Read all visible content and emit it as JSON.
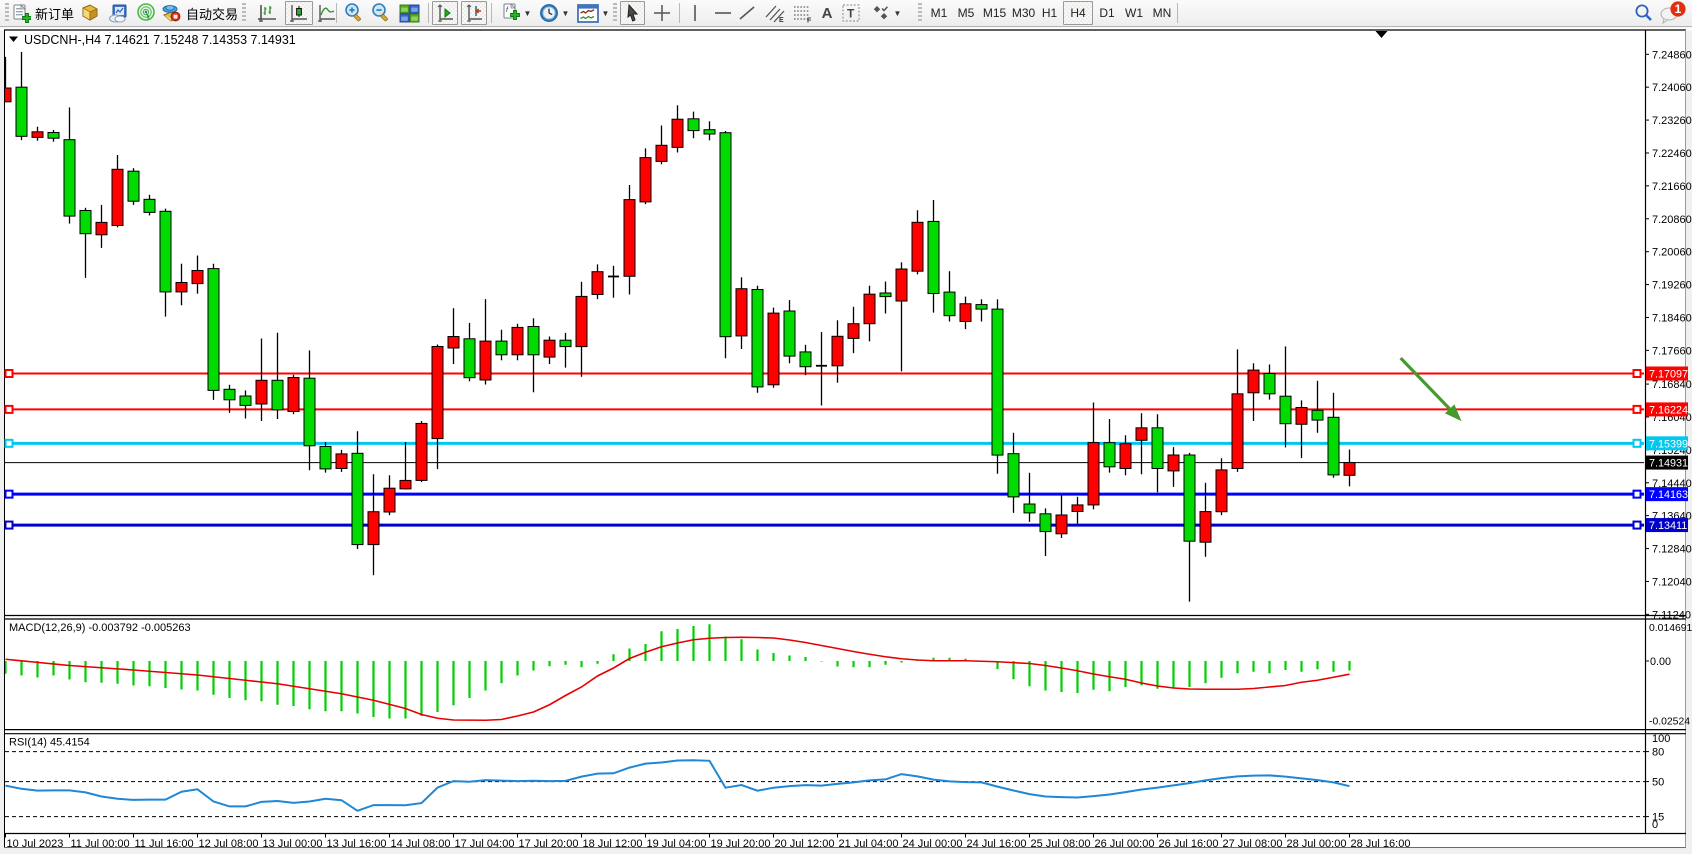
{
  "app": {
    "platform": "MetaTrader 4",
    "theme_accent": "#f3f3f3"
  },
  "toolbar": {
    "new_order_label": "新订单",
    "auto_trading_label": "自动交易",
    "icon_buttons": [
      "new-order",
      "market-watch",
      "data-window",
      "signals",
      "auto-trading"
    ],
    "chart_mode_buttons": [
      "bar-chart",
      "candlestick-chart",
      "line-chart"
    ],
    "selected_chart_mode": "candlestick-chart",
    "zoom_buttons": [
      "zoom-in",
      "zoom-out",
      "tile-windows"
    ],
    "toggle_buttons": [
      "auto-scroll",
      "chart-shift"
    ],
    "dropdown_buttons": [
      "indicators",
      "periods",
      "templates"
    ],
    "draw_tools": [
      "cursor",
      "crosshair",
      "vertical-line",
      "horizontal-line",
      "trendline",
      "equidistant-channel",
      "fibonacci",
      "text",
      "text-label",
      "arrows"
    ],
    "selected_tool": "cursor",
    "tool_letters": {
      "channel": "E",
      "fibonacci": "F",
      "text": "A",
      "label": "T"
    },
    "timeframes": [
      "M1",
      "M5",
      "M15",
      "M30",
      "H1",
      "H4",
      "D1",
      "W1",
      "MN"
    ],
    "selected_timeframe": "H4",
    "search": "search",
    "notification_count": "1"
  },
  "chart": {
    "symbol_title": "USDCNH-,H4",
    "ohlc_text": "7.14621 7.15248 7.14353 7.14931",
    "open": "7.14621",
    "high": "7.15248",
    "low": "7.14353",
    "close": "7.14931"
  },
  "chart_data": {
    "type": "candlestick",
    "symbol": "USDCNH",
    "timeframe": "H4",
    "title": "USDCNH-,H4  7.14621 7.15248 7.14353 7.14931",
    "bull_color": "#ff0000",
    "bear_color": "#00dc00",
    "wick_color": "#000000",
    "background": "#ffffff",
    "grid": false,
    "ylim": [
      7.1124,
      7.2486
    ],
    "price_ticks": [
      "7.24860",
      "7.24060",
      "7.23260",
      "7.22460",
      "7.21660",
      "7.20860",
      "7.20060",
      "7.19260",
      "7.18460",
      "7.17660",
      "7.16840",
      "7.16040",
      "7.15240",
      "7.14440",
      "7.13640",
      "7.12840",
      "7.12040",
      "7.11240"
    ],
    "time_labels": [
      "10 Jul 2023",
      "11 Jul 00:00",
      "11 Jul 16:00",
      "12 Jul 08:00",
      "13 Jul 00:00",
      "13 Jul 16:00",
      "14 Jul 08:00",
      "17 Jul 04:00",
      "17 Jul 20:00",
      "18 Jul 12:00",
      "19 Jul 04:00",
      "19 Jul 20:00",
      "20 Jul 12:00",
      "21 Jul 04:00",
      "24 Jul 00:00",
      "24 Jul 16:00",
      "25 Jul 08:00",
      "26 Jul 00:00",
      "26 Jul 16:00",
      "27 Jul 08:00",
      "28 Jul 00:00",
      "28 Jul 16:00"
    ],
    "bars_per_label": 4,
    "candles_ohlc": [
      [
        7.23704,
        7.24796,
        7.23704,
        7.2404
      ],
      [
        7.2406,
        7.24916,
        7.22773,
        7.22865
      ],
      [
        7.22839,
        7.23099,
        7.22758,
        7.22975
      ],
      [
        7.22958,
        7.23021,
        7.22734,
        7.22819
      ],
      [
        7.22783,
        7.23568,
        7.20742,
        7.20925
      ],
      [
        7.21061,
        7.21127,
        7.19422,
        7.20497
      ],
      [
        7.2047,
        7.21197,
        7.20151,
        7.20772
      ],
      [
        7.20696,
        7.22411,
        7.20652,
        7.22063
      ],
      [
        7.22017,
        7.2209,
        7.21197,
        7.21287
      ],
      [
        7.21333,
        7.21443,
        7.20942,
        7.21015
      ],
      [
        7.21042,
        7.21105,
        7.18481,
        7.19081
      ],
      [
        7.19081,
        7.19767,
        7.18756,
        7.1931
      ],
      [
        7.19283,
        7.19967,
        7.19038,
        7.19602
      ],
      [
        7.19648,
        7.19767,
        7.16457,
        7.16686
      ],
      [
        7.16713,
        7.16822,
        7.16139,
        7.16457
      ],
      [
        7.1655,
        7.16686,
        7.16003,
        7.16321
      ],
      [
        7.16355,
        7.17948,
        7.15942,
        7.16932
      ],
      [
        7.16932,
        7.18089,
        7.1599,
        7.16214
      ],
      [
        7.16173,
        7.17065,
        7.16107,
        7.17
      ],
      [
        7.16983,
        7.17659,
        7.14745,
        7.15339
      ],
      [
        7.15322,
        7.15429,
        7.14687,
        7.14777
      ],
      [
        7.14787,
        7.15239,
        7.14704,
        7.15142
      ],
      [
        7.15156,
        7.15694,
        7.12829,
        7.12936
      ],
      [
        7.12936,
        7.14646,
        7.12192,
        7.13736
      ],
      [
        7.13729,
        7.14621,
        7.13653,
        7.14308
      ],
      [
        7.14291,
        7.15429,
        7.14274,
        7.14497
      ],
      [
        7.14497,
        7.15942,
        7.14456,
        7.15883
      ],
      [
        7.15514,
        7.17802,
        7.14772,
        7.17754
      ],
      [
        7.17717,
        7.18685,
        7.17328,
        7.17997
      ],
      [
        7.17941,
        7.18328,
        7.16907,
        7.16995
      ],
      [
        7.16939,
        7.18906,
        7.16829,
        7.17885
      ],
      [
        7.17885,
        7.18162,
        7.17418,
        7.17552
      ],
      [
        7.17552,
        7.18306,
        7.17418,
        7.18218
      ],
      [
        7.1824,
        7.18439,
        7.1664,
        7.17552
      ],
      [
        7.17496,
        7.17997,
        7.17328,
        7.17907
      ],
      [
        7.17907,
        7.18084,
        7.1724,
        7.17751
      ],
      [
        7.17751,
        7.19327,
        7.17017,
        7.18972
      ],
      [
        7.19018,
        7.1975,
        7.18906,
        7.19573
      ],
      [
        7.19456,
        7.19716,
        7.1894,
        7.19456
      ],
      [
        7.19461,
        7.21681,
        7.19018,
        7.21326
      ],
      [
        7.2127,
        7.22571,
        7.21214,
        7.22347
      ],
      [
        7.22255,
        7.23128,
        7.22185,
        7.22647
      ],
      [
        7.22596,
        7.23619,
        7.22472,
        7.23281
      ],
      [
        7.23291,
        7.23466,
        7.22819,
        7.23004
      ],
      [
        7.23026,
        7.2323,
        7.22768,
        7.22921
      ],
      [
        7.22953,
        7.22994,
        7.17469,
        7.17992
      ],
      [
        7.18011,
        7.19436,
        7.17693,
        7.19159
      ],
      [
        7.1914,
        7.19232,
        7.16628,
        7.16771
      ],
      [
        7.16822,
        7.187,
        7.16749,
        7.18566
      ],
      [
        7.18617,
        7.18882,
        7.17345,
        7.1752
      ],
      [
        7.17622,
        7.17795,
        7.17058,
        7.17262
      ],
      [
        7.17285,
        7.18104,
        7.16319,
        7.17285
      ],
      [
        7.17284,
        7.18391,
        7.16873,
        7.18002
      ],
      [
        7.17951,
        7.18719,
        7.17591,
        7.18308
      ],
      [
        7.18308,
        7.19232,
        7.17878,
        7.19026
      ],
      [
        7.19055,
        7.19334,
        7.18556,
        7.18967
      ],
      [
        7.1886,
        7.19801,
        7.17148,
        7.19638
      ],
      [
        7.19585,
        7.21066,
        7.19509,
        7.20774
      ],
      [
        7.20796,
        7.21316,
        7.18578,
        7.19043
      ],
      [
        7.19077,
        7.19585,
        7.18362,
        7.18503
      ],
      [
        7.18362,
        7.18967,
        7.18177,
        7.18794
      ],
      [
        7.18773,
        7.18901,
        7.18362,
        7.18663
      ],
      [
        7.18663,
        7.18901,
        7.1466,
        7.15113
      ],
      [
        7.15147,
        7.15655,
        7.13707,
        7.14096
      ],
      [
        7.13923,
        7.14682,
        7.1349,
        7.13707
      ],
      [
        7.13685,
        7.13816,
        7.12659,
        7.13252
      ],
      [
        7.13199,
        7.1415,
        7.13097,
        7.13656
      ],
      [
        7.13741,
        7.14098,
        7.13447,
        7.13901
      ],
      [
        7.13901,
        7.16392,
        7.13794,
        7.15417
      ],
      [
        7.15414,
        7.1599,
        7.14687,
        7.14828
      ],
      [
        7.14787,
        7.15594,
        7.14621,
        7.1539
      ],
      [
        7.15472,
        7.16132,
        7.14646,
        7.15776
      ],
      [
        7.15776,
        7.16107,
        7.14208,
        7.14787
      ],
      [
        7.14728,
        7.15307,
        7.14339,
        7.15115
      ],
      [
        7.15115,
        7.15166,
        7.1155,
        7.13019
      ],
      [
        7.12994,
        7.14439,
        7.12639,
        7.13739
      ],
      [
        7.13736,
        7.15035,
        7.13653,
        7.14753
      ],
      [
        7.14787,
        7.17683,
        7.14704,
        7.16603
      ],
      [
        7.16628,
        7.17345,
        7.15942,
        7.1718
      ],
      [
        7.17097,
        7.17316,
        7.16462,
        7.16603
      ],
      [
        7.16545,
        7.17756,
        7.153,
        7.15876
      ],
      [
        7.15862,
        7.16443,
        7.1504,
        7.1627
      ],
      [
        7.16202,
        7.16919,
        7.15655,
        7.15964
      ],
      [
        7.16032,
        7.16628,
        7.14563,
        7.14631
      ],
      [
        7.14621,
        7.15248,
        7.14353,
        7.14931
      ]
    ],
    "price_lines": [
      {
        "value": 7.17097,
        "label": "7.17097",
        "color": "#ff0000",
        "width": 2,
        "handles": true
      },
      {
        "value": 7.16224,
        "label": "7.16224",
        "color": "#ff0000",
        "width": 2,
        "handles": true
      },
      {
        "value": 7.15399,
        "label": "7.15399",
        "color": "#00c8f0",
        "width": 3,
        "handles": true
      },
      {
        "value": 7.14931,
        "label": "7.14931",
        "color": "#000000",
        "width": 1,
        "handles": false,
        "current_price": true
      },
      {
        "value": 7.14163,
        "label": "7.14163",
        "color": "#0000ff",
        "width": 3,
        "handles": true
      },
      {
        "value": 7.13411,
        "label": "7.13411",
        "color": "#0000c8",
        "width": 3,
        "handles": true
      }
    ],
    "annotations": [
      {
        "type": "arrow",
        "color": "#459a2e",
        "from": {
          "bar": 87.2,
          "price": 7.1747
        },
        "to": {
          "bar": 91.0,
          "price": 7.1594
        }
      },
      {
        "type": "shift-marker",
        "color": "#000000",
        "bar": 86
      }
    ],
    "indicators": [
      {
        "name": "MACD",
        "label": "MACD(12,26,9) -0.003792 -0.005263",
        "params": "12,26,9",
        "value_main": "-0.003792",
        "value_signal": "-0.005263",
        "axis_labels": [
          "0.014691",
          "0.00",
          "-0.02524"
        ],
        "range": [
          -0.02524,
          0.014691
        ],
        "histogram_color": "#00d000",
        "signal_color": "#e60000",
        "histogram": [
          -0.0051,
          -0.0058,
          -0.0066,
          -0.0058,
          -0.0074,
          -0.0085,
          -0.0087,
          -0.0091,
          -0.0098,
          -0.0101,
          -0.0108,
          -0.0114,
          -0.0118,
          -0.0135,
          -0.0148,
          -0.0157,
          -0.0161,
          -0.0175,
          -0.018,
          -0.0193,
          -0.0201,
          -0.0201,
          -0.021,
          -0.0224,
          -0.023,
          -0.023,
          -0.022,
          -0.0204,
          -0.0177,
          -0.0148,
          -0.0118,
          -0.0089,
          -0.0058,
          -0.0038,
          -0.0021,
          -0.0015,
          -0.0025,
          -0.0011,
          0.0027,
          0.005,
          0.0068,
          0.0119,
          0.0128,
          0.014,
          0.0147,
          0.0098,
          0.0087,
          0.0046,
          0.0032,
          0.0022,
          0.0016,
          -0.0002,
          -0.0022,
          -0.0025,
          -0.0025,
          -0.0015,
          -0.0006,
          0.0005,
          0.0013,
          0.0013,
          0.0009,
          0.0002,
          -0.0032,
          -0.0073,
          -0.0101,
          -0.0118,
          -0.0124,
          -0.0128,
          -0.0115,
          -0.0121,
          -0.0104,
          -0.0097,
          -0.0111,
          -0.0107,
          -0.0104,
          -0.0089,
          -0.0067,
          -0.0049,
          -0.0043,
          -0.0049,
          -0.0036,
          -0.0043,
          -0.0033,
          -0.0043,
          -0.003792
        ],
        "signal": [
          0.0007,
          7.5e-05,
          -0.00055,
          -0.001175,
          -0.0018,
          -0.00225,
          -0.0027,
          -0.00315,
          -0.0036,
          -0.0041,
          -0.0046,
          -0.0051,
          -0.0056,
          -0.0063,
          -0.007,
          -0.0077,
          -0.0084,
          -0.0091,
          -0.0101,
          -0.0111,
          -0.0121,
          -0.0131,
          -0.0144,
          -0.0157,
          -0.01735,
          -0.019,
          -0.0214,
          -0.0229,
          -0.0236,
          -0.02365,
          -0.0237,
          -0.0234,
          -0.022,
          -0.0204,
          -0.0175,
          -0.0138,
          -0.0104,
          -0.006,
          -0.0028,
          0.001,
          0.0035,
          0.0057,
          0.0072,
          0.0085,
          0.0091,
          0.0094,
          0.0095,
          0.0094,
          0.0092,
          0.0084,
          0.0074,
          0.0062,
          0.005,
          0.0038,
          0.0027,
          0.0017,
          0.0009,
          0.0004,
          0.0001,
          0.0001,
          0.0001,
          -0.0001,
          -0.0003,
          -0.00065,
          -0.001,
          -0.0018,
          -0.0028,
          -0.0039,
          -0.0052,
          -0.0063,
          -0.0073,
          -0.0088,
          -0.01,
          -0.0108,
          -0.0112,
          -0.0113,
          -0.0113,
          -0.0113,
          -0.011,
          -0.0104,
          -0.0098,
          -0.0085,
          -0.0077,
          -0.0065,
          -0.005263
        ]
      },
      {
        "name": "RSI",
        "label": "RSI(14) 45.4154",
        "params": "14",
        "value": "45.4154",
        "axis_labels": [
          "100",
          "80",
          "50",
          "15",
          "0"
        ],
        "levels": [
          80,
          50,
          15
        ],
        "range": [
          0,
          100
        ],
        "line_color": "#1e87d6",
        "values": [
          46.0,
          42.8,
          41.0,
          41.2,
          41.2,
          39.2,
          35.1,
          32.8,
          31.7,
          32.0,
          32.0,
          39.9,
          42.3,
          30.1,
          25.2,
          25.2,
          29.7,
          30.6,
          28.7,
          30.1,
          32.8,
          31.4,
          20.8,
          26.5,
          26.5,
          26.3,
          28.5,
          44.0,
          50.5,
          49.8,
          51.5,
          51.0,
          50.5,
          50.8,
          50.5,
          50.7,
          55.0,
          58.0,
          58.3,
          64.0,
          68.0,
          69.1,
          71.1,
          71.4,
          70.8,
          43.9,
          46.6,
          40.9,
          43.9,
          45.5,
          46.5,
          46.0,
          47.7,
          49.2,
          51.2,
          52.2,
          57.5,
          55.2,
          52.0,
          50.2,
          49.5,
          49.2,
          45.0,
          41.1,
          37.5,
          35.1,
          34.5,
          34.1,
          35.5,
          37.1,
          39.5,
          42.1,
          44.0,
          46.2,
          48.5,
          51.2,
          53.5,
          55.2,
          56.0,
          56.2,
          55.0,
          53.2,
          51.5,
          49.2,
          45.4154
        ]
      }
    ]
  }
}
